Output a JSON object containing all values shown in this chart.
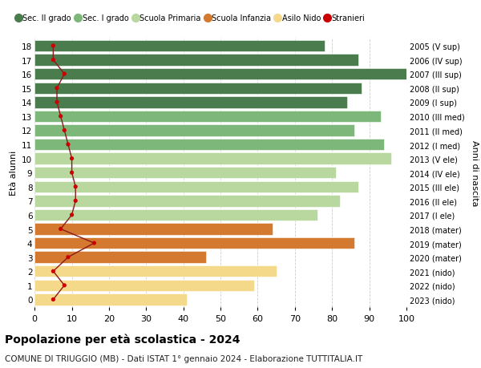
{
  "ages": [
    18,
    17,
    16,
    15,
    14,
    13,
    12,
    11,
    10,
    9,
    8,
    7,
    6,
    5,
    4,
    3,
    2,
    1,
    0
  ],
  "right_labels": [
    "2005 (V sup)",
    "2006 (IV sup)",
    "2007 (III sup)",
    "2008 (II sup)",
    "2009 (I sup)",
    "2010 (III med)",
    "2011 (II med)",
    "2012 (I med)",
    "2013 (V ele)",
    "2014 (IV ele)",
    "2015 (III ele)",
    "2016 (II ele)",
    "2017 (I ele)",
    "2018 (mater)",
    "2019 (mater)",
    "2020 (mater)",
    "2021 (nido)",
    "2022 (nido)",
    "2023 (nido)"
  ],
  "bar_values": [
    78,
    87,
    100,
    88,
    84,
    93,
    86,
    94,
    96,
    81,
    87,
    82,
    76,
    64,
    86,
    46,
    65,
    59,
    41
  ],
  "bar_colors": [
    "#4a7c4e",
    "#4a7c4e",
    "#4a7c4e",
    "#4a7c4e",
    "#4a7c4e",
    "#7db87a",
    "#7db87a",
    "#7db87a",
    "#b8d8a0",
    "#b8d8a0",
    "#b8d8a0",
    "#b8d8a0",
    "#b8d8a0",
    "#d47a30",
    "#d47a30",
    "#d47a30",
    "#f5d98b",
    "#f5d98b",
    "#f5d98b"
  ],
  "stranieri_values": [
    5,
    5,
    8,
    6,
    6,
    7,
    8,
    9,
    10,
    10,
    11,
    11,
    10,
    7,
    16,
    9,
    5,
    8,
    5
  ],
  "legend_labels": [
    "Sec. II grado",
    "Sec. I grado",
    "Scuola Primaria",
    "Scuola Infanzia",
    "Asilo Nido",
    "Stranieri"
  ],
  "legend_colors": [
    "#4a7c4e",
    "#7db87a",
    "#b8d8a0",
    "#d47a30",
    "#f5d98b",
    "#cc0000"
  ],
  "title": "Popolazione per età scolastica - 2024",
  "subtitle": "COMUNE DI TRIUGGIO (MB) - Dati ISTAT 1° gennaio 2024 - Elaborazione TUTTITALIA.IT",
  "ylabel_left": "Età alunni",
  "ylabel_right": "Anni di nascita",
  "xlim": [
    0,
    100
  ],
  "bg_color": "#ffffff",
  "grid_color": "#cccccc",
  "bar_height": 0.82
}
